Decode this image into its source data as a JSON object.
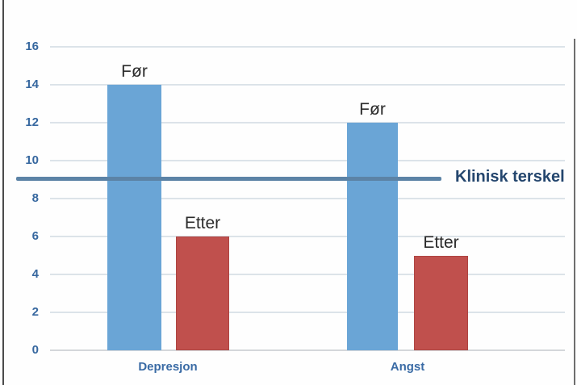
{
  "chart_data": {
    "type": "bar",
    "title": "",
    "categories": [
      "Depresjon",
      "Angst"
    ],
    "series": [
      {
        "name": "Før",
        "values": [
          14,
          12
        ],
        "color": "#6aa5d6"
      },
      {
        "name": "Etter",
        "values": [
          6,
          5
        ],
        "color": "#c0504d"
      }
    ],
    "threshold": {
      "value": 9,
      "label": "Klinisk terskel",
      "color": "#5c83a6"
    },
    "ylim": [
      0,
      16
    ],
    "yticks": [
      0,
      2,
      4,
      6,
      8,
      10,
      12,
      14,
      16
    ],
    "grid": true,
    "legend_position": "none",
    "bar_labels_above": true,
    "axis_text_color": "#36679f",
    "bar_label_text_color": "#2b2b2b",
    "threshold_text_color": "#24466e"
  }
}
